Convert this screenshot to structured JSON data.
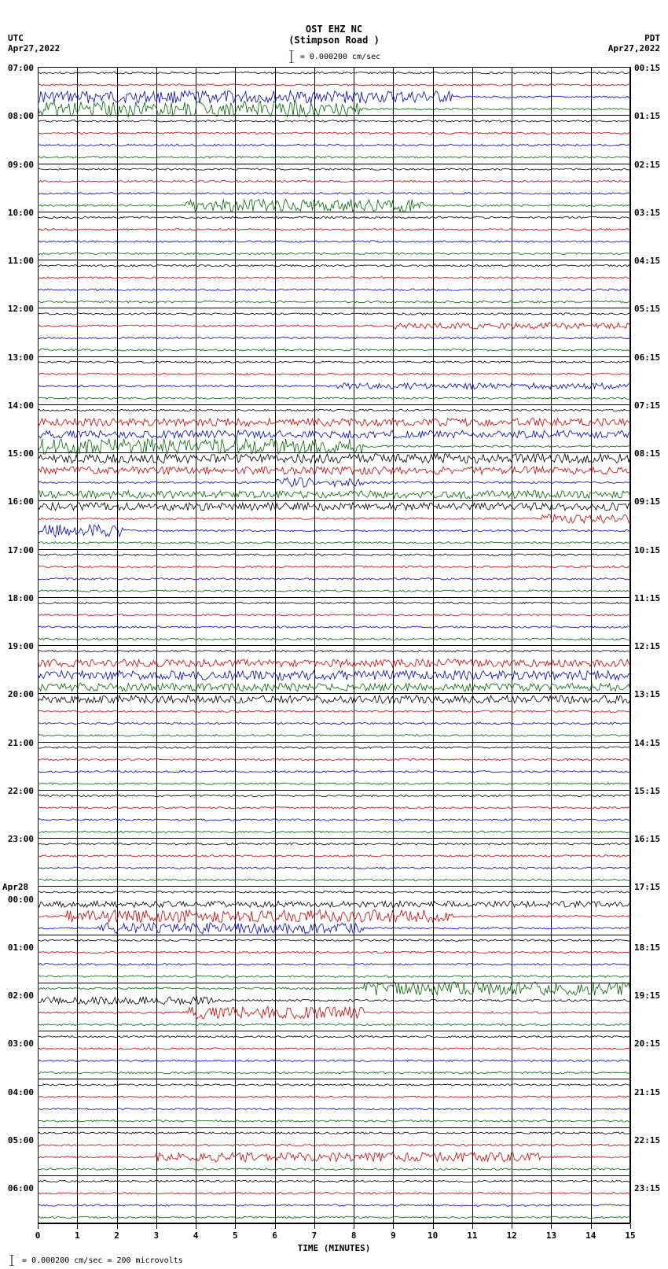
{
  "header": {
    "station": "OST EHZ NC",
    "location": "(Stimpson Road )",
    "scale_text": "= 0.000200 cm/sec"
  },
  "timezone_left": "UTC",
  "date_left": "Apr27,2022",
  "timezone_right": "PDT",
  "date_right": "Apr27,2022",
  "x_axis": {
    "title": "TIME (MINUTES)",
    "ticks": [
      0,
      1,
      2,
      3,
      4,
      5,
      6,
      7,
      8,
      9,
      10,
      11,
      12,
      13,
      14,
      15
    ]
  },
  "footer_text": "= 0.000200 cm/sec =    200 microvolts",
  "colors": {
    "black": "#000000",
    "red": "#cc0000",
    "blue": "#0000cc",
    "green": "#006600"
  },
  "left_labels": [
    {
      "i": 0,
      "text": "07:00"
    },
    {
      "i": 4,
      "text": "08:00"
    },
    {
      "i": 8,
      "text": "09:00"
    },
    {
      "i": 12,
      "text": "10:00"
    },
    {
      "i": 16,
      "text": "11:00"
    },
    {
      "i": 20,
      "text": "12:00"
    },
    {
      "i": 24,
      "text": "13:00"
    },
    {
      "i": 28,
      "text": "14:00"
    },
    {
      "i": 32,
      "text": "15:00"
    },
    {
      "i": 36,
      "text": "16:00"
    },
    {
      "i": 40,
      "text": "17:00"
    },
    {
      "i": 44,
      "text": "18:00"
    },
    {
      "i": 48,
      "text": "19:00"
    },
    {
      "i": 52,
      "text": "20:00"
    },
    {
      "i": 56,
      "text": "21:00"
    },
    {
      "i": 60,
      "text": "22:00"
    },
    {
      "i": 64,
      "text": "23:00"
    },
    {
      "i": 68,
      "text": "Apr28",
      "date": true
    },
    {
      "i": 69,
      "text": "00:00"
    },
    {
      "i": 73,
      "text": "01:00"
    },
    {
      "i": 77,
      "text": "02:00"
    },
    {
      "i": 81,
      "text": "03:00"
    },
    {
      "i": 85,
      "text": "04:00"
    },
    {
      "i": 89,
      "text": "05:00"
    },
    {
      "i": 93,
      "text": "06:00"
    }
  ],
  "right_labels": [
    {
      "i": 0,
      "text": "00:15"
    },
    {
      "i": 4,
      "text": "01:15"
    },
    {
      "i": 8,
      "text": "02:15"
    },
    {
      "i": 12,
      "text": "03:15"
    },
    {
      "i": 16,
      "text": "04:15"
    },
    {
      "i": 20,
      "text": "05:15"
    },
    {
      "i": 24,
      "text": "06:15"
    },
    {
      "i": 28,
      "text": "07:15"
    },
    {
      "i": 32,
      "text": "08:15"
    },
    {
      "i": 36,
      "text": "09:15"
    },
    {
      "i": 40,
      "text": "10:15"
    },
    {
      "i": 44,
      "text": "11:15"
    },
    {
      "i": 48,
      "text": "12:15"
    },
    {
      "i": 52,
      "text": "13:15"
    },
    {
      "i": 56,
      "text": "14:15"
    },
    {
      "i": 60,
      "text": "15:15"
    },
    {
      "i": 64,
      "text": "16:15"
    },
    {
      "i": 68,
      "text": "17:15"
    },
    {
      "i": 73,
      "text": "18:15"
    },
    {
      "i": 77,
      "text": "19:15"
    },
    {
      "i": 81,
      "text": "20:15"
    },
    {
      "i": 85,
      "text": "21:15"
    },
    {
      "i": 89,
      "text": "22:15"
    },
    {
      "i": 93,
      "text": "23:15"
    }
  ],
  "n_traces": 96,
  "color_cycle": [
    "black",
    "red",
    "blue",
    "green"
  ],
  "trace_activity": {
    "2": {
      "amp": 8,
      "seg": [
        0,
        0.7
      ],
      "color": "blue"
    },
    "3": {
      "amp": 10,
      "seg": [
        0,
        0.55
      ],
      "color": "green"
    },
    "11": {
      "amp": 8,
      "seg": [
        0.25,
        0.65
      ],
      "color": "green"
    },
    "21": {
      "amp": 4,
      "seg": [
        0.6,
        1
      ],
      "color": "red"
    },
    "26": {
      "amp": 4,
      "seg": [
        0.5,
        1
      ],
      "color": "blue"
    },
    "29": {
      "amp": 5,
      "seg": [
        0,
        1
      ],
      "color": "red"
    },
    "30": {
      "amp": 5,
      "seg": [
        0,
        1
      ],
      "color": "blue"
    },
    "31": {
      "amp": 10,
      "seg": [
        0,
        0.55
      ],
      "color": "green"
    },
    "32": {
      "amp": 6,
      "seg": [
        0,
        1
      ],
      "color": "black"
    },
    "33": {
      "amp": 5,
      "seg": [
        0,
        1
      ],
      "color": "red"
    },
    "34": {
      "amp": 6,
      "seg": [
        0.4,
        0.55
      ],
      "color": "blue"
    },
    "35": {
      "amp": 5,
      "seg": [
        0,
        1
      ],
      "color": "green"
    },
    "36": {
      "amp": 5,
      "seg": [
        0,
        1
      ],
      "color": "black"
    },
    "37": {
      "amp": 6,
      "seg": [
        0.85,
        1
      ],
      "color": "red"
    },
    "38": {
      "amp": 8,
      "seg": [
        0,
        0.15
      ],
      "color": "blue"
    },
    "49": {
      "amp": 5,
      "seg": [
        0,
        1
      ],
      "color": "red"
    },
    "50": {
      "amp": 6,
      "seg": [
        0,
        1
      ],
      "color": "blue"
    },
    "51": {
      "amp": 5,
      "seg": [
        0,
        1
      ],
      "color": "green"
    },
    "52": {
      "amp": 5,
      "seg": [
        0,
        1
      ],
      "color": "black"
    },
    "69": {
      "amp": 4,
      "seg": [
        0,
        1
      ],
      "color": "black"
    },
    "70": {
      "amp": 8,
      "seg": [
        0.05,
        0.7
      ],
      "color": "red"
    },
    "71": {
      "amp": 7,
      "seg": [
        0.1,
        0.55
      ],
      "color": "blue"
    },
    "76": {
      "amp": 9,
      "seg": [
        0.55,
        1
      ],
      "color": "green"
    },
    "77": {
      "amp": 5,
      "seg": [
        0,
        0.3
      ],
      "color": "black"
    },
    "78": {
      "amp": 8,
      "seg": [
        0.25,
        0.55
      ],
      "color": "red"
    },
    "90": {
      "amp": 6,
      "seg": [
        0.2,
        0.85
      ],
      "color": "red"
    }
  }
}
